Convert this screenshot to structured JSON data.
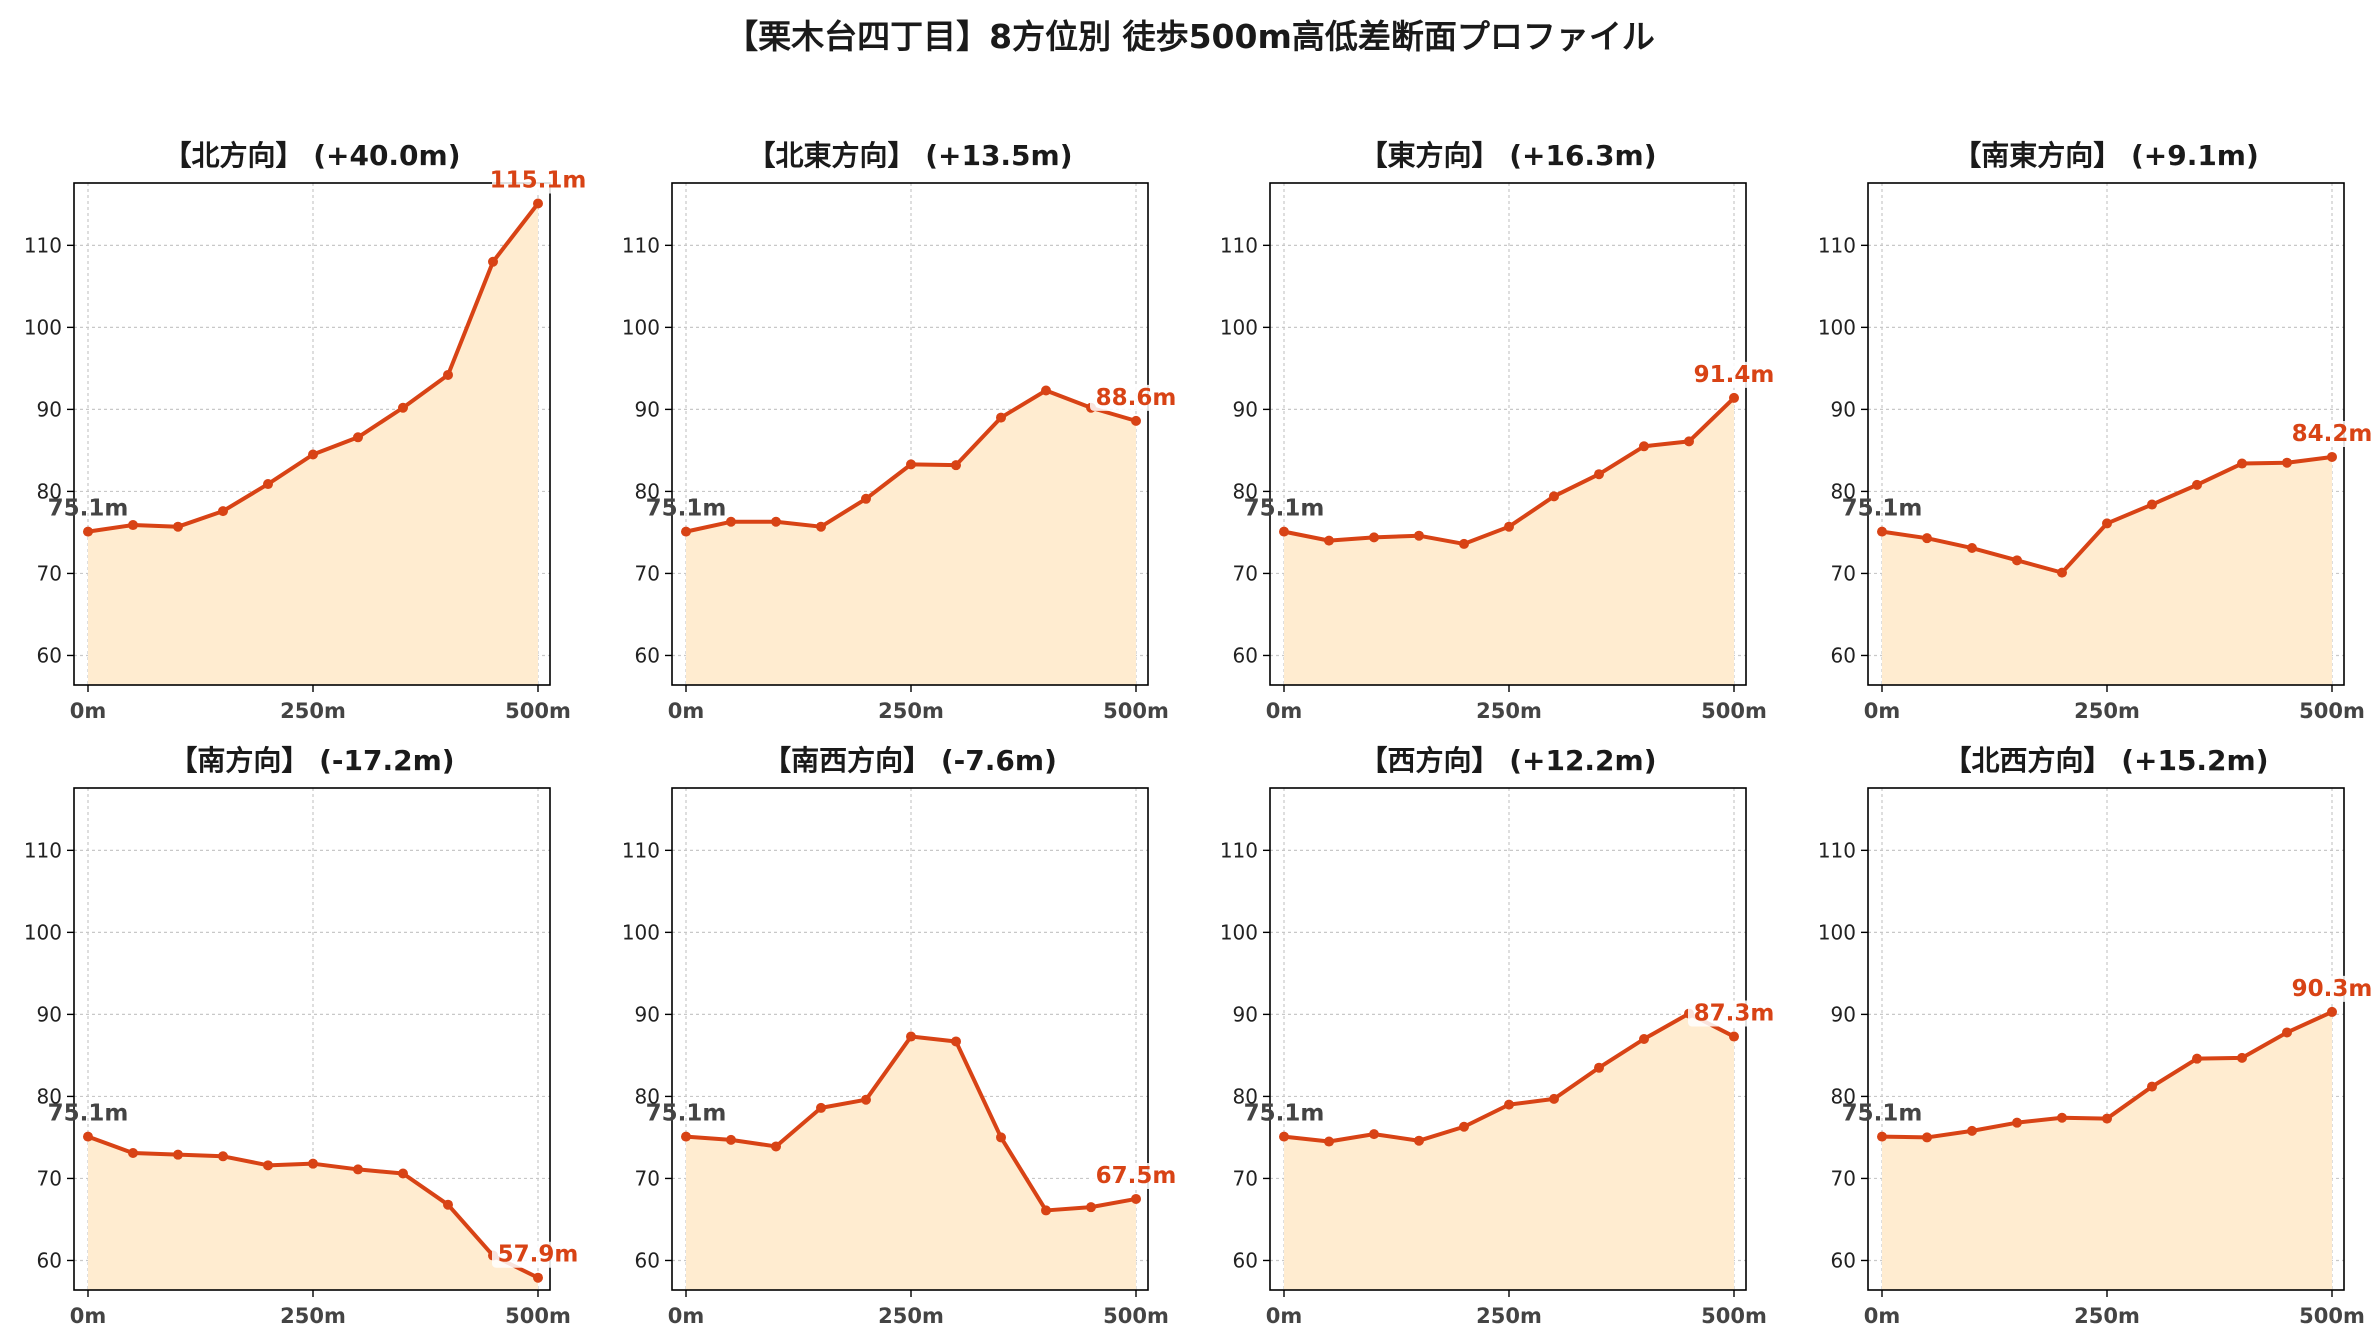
{
  "figure": {
    "title": "【栗木台四丁目】8方位別 徒歩500m高低差断面プロファイル"
  },
  "colors": {
    "line": "#d84315",
    "fill": "#ffecd0",
    "start_label": "#444444",
    "end_label": "#d84315",
    "grid": "#c8c8c8"
  },
  "chart_data": [
    {
      "type": "area",
      "title": "【北方向】 (+40.0m)",
      "x": [
        0,
        50,
        100,
        150,
        200,
        250,
        300,
        350,
        400,
        450,
        500
      ],
      "series": [
        {
          "values": [
            75.1,
            75.9,
            75.7,
            77.6,
            80.9,
            84.5,
            86.6,
            90.2,
            94.2,
            108.0,
            115.1
          ]
        }
      ],
      "start_label": "75.1m",
      "end_label": "115.1m",
      "xticks": [
        "0m",
        "250m",
        "500m"
      ],
      "yticks": [
        60,
        70,
        80,
        90,
        100,
        110
      ],
      "ylim": [
        56.4,
        117.6
      ],
      "grid": true
    },
    {
      "type": "area",
      "title": "【北東方向】 (+13.5m)",
      "x": [
        0,
        50,
        100,
        150,
        200,
        250,
        300,
        350,
        400,
        450,
        500
      ],
      "series": [
        {
          "values": [
            75.1,
            76.3,
            76.3,
            75.7,
            79.1,
            83.3,
            83.2,
            89.0,
            92.3,
            90.2,
            88.6
          ]
        }
      ],
      "start_label": "75.1m",
      "end_label": "88.6m",
      "xticks": [
        "0m",
        "250m",
        "500m"
      ],
      "yticks": [
        60,
        70,
        80,
        90,
        100,
        110
      ],
      "ylim": [
        56.4,
        117.6
      ],
      "grid": true
    },
    {
      "type": "area",
      "title": "【東方向】 (+16.3m)",
      "x": [
        0,
        50,
        100,
        150,
        200,
        250,
        300,
        350,
        400,
        450,
        500
      ],
      "series": [
        {
          "values": [
            75.1,
            74.0,
            74.4,
            74.6,
            73.6,
            75.7,
            79.4,
            82.1,
            85.5,
            86.1,
            91.4
          ]
        }
      ],
      "start_label": "75.1m",
      "end_label": "91.4m",
      "xticks": [
        "0m",
        "250m",
        "500m"
      ],
      "yticks": [
        60,
        70,
        80,
        90,
        100,
        110
      ],
      "ylim": [
        56.4,
        117.6
      ],
      "grid": true
    },
    {
      "type": "area",
      "title": "【南東方向】 (+9.1m)",
      "x": [
        0,
        50,
        100,
        150,
        200,
        250,
        300,
        350,
        400,
        450,
        500
      ],
      "series": [
        {
          "values": [
            75.1,
            74.3,
            73.1,
            71.6,
            70.1,
            76.1,
            78.4,
            80.8,
            83.4,
            83.5,
            84.2
          ]
        }
      ],
      "start_label": "75.1m",
      "end_label": "84.2m",
      "xticks": [
        "0m",
        "250m",
        "500m"
      ],
      "yticks": [
        60,
        70,
        80,
        90,
        100,
        110
      ],
      "ylim": [
        56.4,
        117.6
      ],
      "grid": true
    },
    {
      "type": "area",
      "title": "【南方向】 (-17.2m)",
      "x": [
        0,
        50,
        100,
        150,
        200,
        250,
        300,
        350,
        400,
        450,
        500
      ],
      "series": [
        {
          "values": [
            75.1,
            73.1,
            72.9,
            72.7,
            71.6,
            71.8,
            71.1,
            70.6,
            66.8,
            60.6,
            57.9
          ]
        }
      ],
      "start_label": "75.1m",
      "end_label": "57.9m",
      "xticks": [
        "0m",
        "250m",
        "500m"
      ],
      "yticks": [
        60,
        70,
        80,
        90,
        100,
        110
      ],
      "ylim": [
        56.4,
        117.6
      ],
      "grid": true
    },
    {
      "type": "area",
      "title": "【南西方向】 (-7.6m)",
      "x": [
        0,
        50,
        100,
        150,
        200,
        250,
        300,
        350,
        400,
        450,
        500
      ],
      "series": [
        {
          "values": [
            75.1,
            74.7,
            73.9,
            78.6,
            79.6,
            87.3,
            86.7,
            75.0,
            66.1,
            66.5,
            67.5
          ]
        }
      ],
      "start_label": "75.1m",
      "end_label": "67.5m",
      "xticks": [
        "0m",
        "250m",
        "500m"
      ],
      "yticks": [
        60,
        70,
        80,
        90,
        100,
        110
      ],
      "ylim": [
        56.4,
        117.6
      ],
      "grid": true
    },
    {
      "type": "area",
      "title": "【西方向】 (+12.2m)",
      "x": [
        0,
        50,
        100,
        150,
        200,
        250,
        300,
        350,
        400,
        450,
        500
      ],
      "series": [
        {
          "values": [
            75.1,
            74.5,
            75.4,
            74.6,
            76.3,
            79.0,
            79.7,
            83.5,
            87.0,
            90.1,
            87.3
          ]
        }
      ],
      "start_label": "75.1m",
      "end_label": "87.3m",
      "xticks": [
        "0m",
        "250m",
        "500m"
      ],
      "yticks": [
        60,
        70,
        80,
        90,
        100,
        110
      ],
      "ylim": [
        56.4,
        117.6
      ],
      "grid": true
    },
    {
      "type": "area",
      "title": "【北西方向】 (+15.2m)",
      "x": [
        0,
        50,
        100,
        150,
        200,
        250,
        300,
        350,
        400,
        450,
        500
      ],
      "series": [
        {
          "values": [
            75.1,
            75.0,
            75.8,
            76.8,
            77.4,
            77.3,
            81.2,
            84.6,
            84.7,
            87.8,
            90.3
          ]
        }
      ],
      "start_label": "75.1m",
      "end_label": "90.3m",
      "xticks": [
        "0m",
        "250m",
        "500m"
      ],
      "yticks": [
        60,
        70,
        80,
        90,
        100,
        110
      ],
      "ylim": [
        56.4,
        117.6
      ],
      "grid": true
    }
  ]
}
